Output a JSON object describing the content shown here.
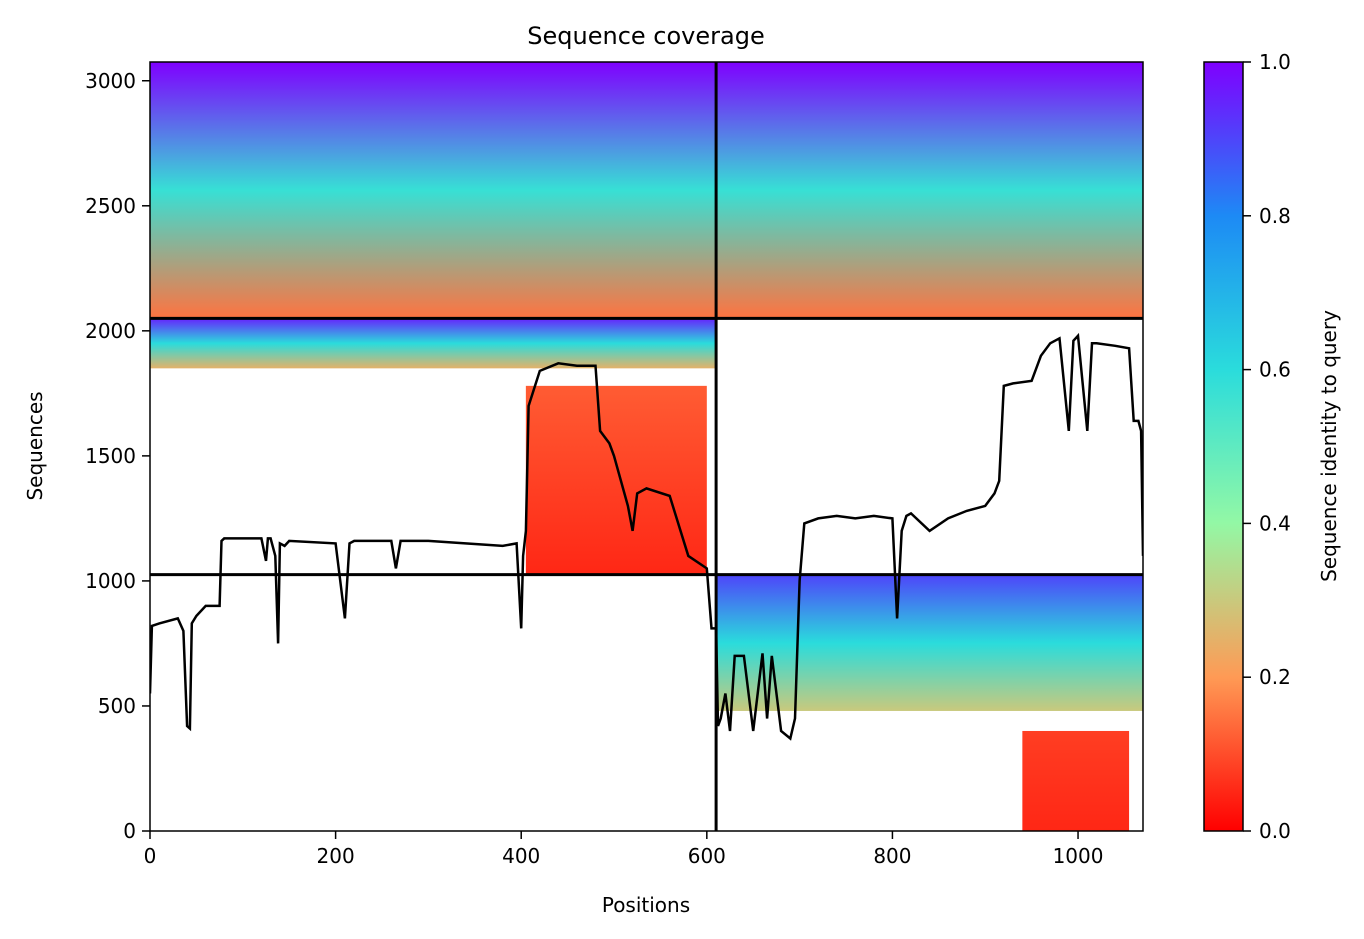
{
  "chart_data": {
    "type": "heatmap",
    "title": "Sequence coverage",
    "xlabel": "Positions",
    "ylabel": "Sequences",
    "colorbar_label": "Sequence identity to query",
    "colormap": "rainbow",
    "xlim": [
      0,
      1070
    ],
    "ylim": [
      0,
      3075
    ],
    "x_ticks": [
      0,
      200,
      400,
      600,
      800,
      1000
    ],
    "y_ticks": [
      0,
      500,
      1000,
      1500,
      2000,
      2500,
      3000
    ],
    "colorbar_ticks": [
      0.0,
      0.2,
      0.4,
      0.6,
      0.8,
      1.0
    ],
    "colorbar_tick_labels": [
      "0.0",
      "0.2",
      "0.4",
      "0.6",
      "0.8",
      "1.0"
    ],
    "divider_x": [
      610
    ],
    "divider_y": [
      1025,
      2050
    ],
    "coverage_blocks": [
      {
        "x": [
          0,
          610
        ],
        "y": [
          2050,
          3075
        ],
        "identity_top": 1.0,
        "identity_bottom": 0.15
      },
      {
        "x": [
          610,
          1070
        ],
        "y": [
          2050,
          3075
        ],
        "identity_top": 1.0,
        "identity_bottom": 0.15
      },
      {
        "x": [
          0,
          610
        ],
        "y": [
          1850,
          2050
        ],
        "identity_top": 0.95,
        "identity_bottom": 0.25
      },
      {
        "x": [
          405,
          600
        ],
        "y": [
          1025,
          1780
        ],
        "identity_top": 0.12,
        "identity_bottom": 0.05
      },
      {
        "x": [
          610,
          1070
        ],
        "y": [
          480,
          1025
        ],
        "identity_top": 0.9,
        "identity_bottom": 0.3
      },
      {
        "x": [
          940,
          1055
        ],
        "y": [
          0,
          400
        ],
        "identity_top": 0.08,
        "identity_bottom": 0.05
      }
    ],
    "line_color": "#000000",
    "series": [
      {
        "x": [
          0,
          2,
          10,
          30,
          36,
          40,
          43,
          45,
          50,
          60,
          75,
          77,
          80,
          120,
          125,
          127,
          130,
          135,
          138,
          140,
          145,
          150,
          200,
          210,
          215,
          220,
          260,
          265,
          270,
          300,
          340,
          380,
          395,
          400,
          402,
          405,
          408,
          420,
          440,
          460,
          480,
          485,
          495,
          500,
          515,
          520,
          525,
          535,
          560,
          580,
          600,
          605,
          610,
          612,
          615,
          620,
          625,
          630,
          640,
          650,
          660,
          665,
          670,
          680,
          690,
          695,
          700,
          705,
          720,
          740,
          760,
          780,
          800,
          805,
          810,
          815,
          820,
          840,
          860,
          880,
          900,
          910,
          915,
          920,
          930,
          950,
          960,
          970,
          980,
          990,
          995,
          1000,
          1010,
          1015,
          1020,
          1040,
          1055,
          1060,
          1065,
          1068,
          1070
        ],
        "values": [
          550,
          820,
          830,
          850,
          800,
          420,
          410,
          830,
          860,
          900,
          900,
          1160,
          1170,
          1170,
          1080,
          1170,
          1170,
          1100,
          750,
          1150,
          1140,
          1160,
          1150,
          850,
          1150,
          1160,
          1160,
          1050,
          1160,
          1160,
          1150,
          1140,
          1150,
          810,
          1100,
          1200,
          1700,
          1840,
          1870,
          1860,
          1860,
          1600,
          1550,
          1500,
          1300,
          1200,
          1350,
          1370,
          1340,
          1100,
          1050,
          810,
          810,
          420,
          450,
          550,
          400,
          700,
          700,
          400,
          710,
          450,
          700,
          400,
          370,
          450,
          1000,
          1230,
          1250,
          1260,
          1250,
          1260,
          1250,
          850,
          1200,
          1260,
          1270,
          1200,
          1250,
          1280,
          1300,
          1350,
          1400,
          1780,
          1790,
          1800,
          1900,
          1950,
          1970,
          1600,
          1960,
          1980,
          1600,
          1950,
          1950,
          1940,
          1930,
          1640,
          1640,
          1600,
          1100
        ]
      }
    ]
  }
}
